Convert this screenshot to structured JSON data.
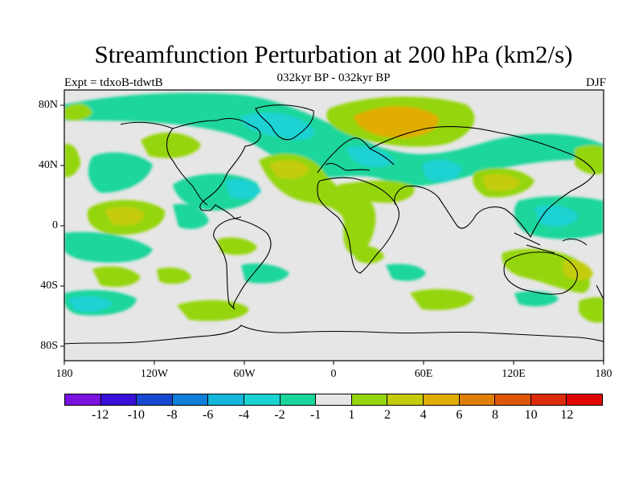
{
  "title": "Streamfunction Perturbation at 200 hPa (km2/s)",
  "subtitle": "032kyr BP - 032kyr BP",
  "experiment": "Expt = tdxoB-tdwtB",
  "season": "DJF",
  "map": {
    "lat_ticks": [
      "80N",
      "40N",
      "0",
      "40S",
      "80S"
    ],
    "lon_ticks": [
      "180",
      "120W",
      "60W",
      "0",
      "60E",
      "120E",
      "180"
    ],
    "background_color": "#e6e6e6"
  },
  "colorbar": {
    "colors": [
      "#7a12e0",
      "#3a10d8",
      "#1748d0",
      "#0f7fd9",
      "#13b7dd",
      "#1ad2d2",
      "#1ad69c",
      "#e6e6e6",
      "#95d50d",
      "#c4cc0a",
      "#e0ad06",
      "#e07f06",
      "#df5509",
      "#de2b0c",
      "#e00505"
    ],
    "labels": [
      "-12",
      "-10",
      "-8",
      "-6",
      "-4",
      "-2",
      "-1",
      "1",
      "2",
      "4",
      "6",
      "8",
      "10",
      "12"
    ]
  }
}
